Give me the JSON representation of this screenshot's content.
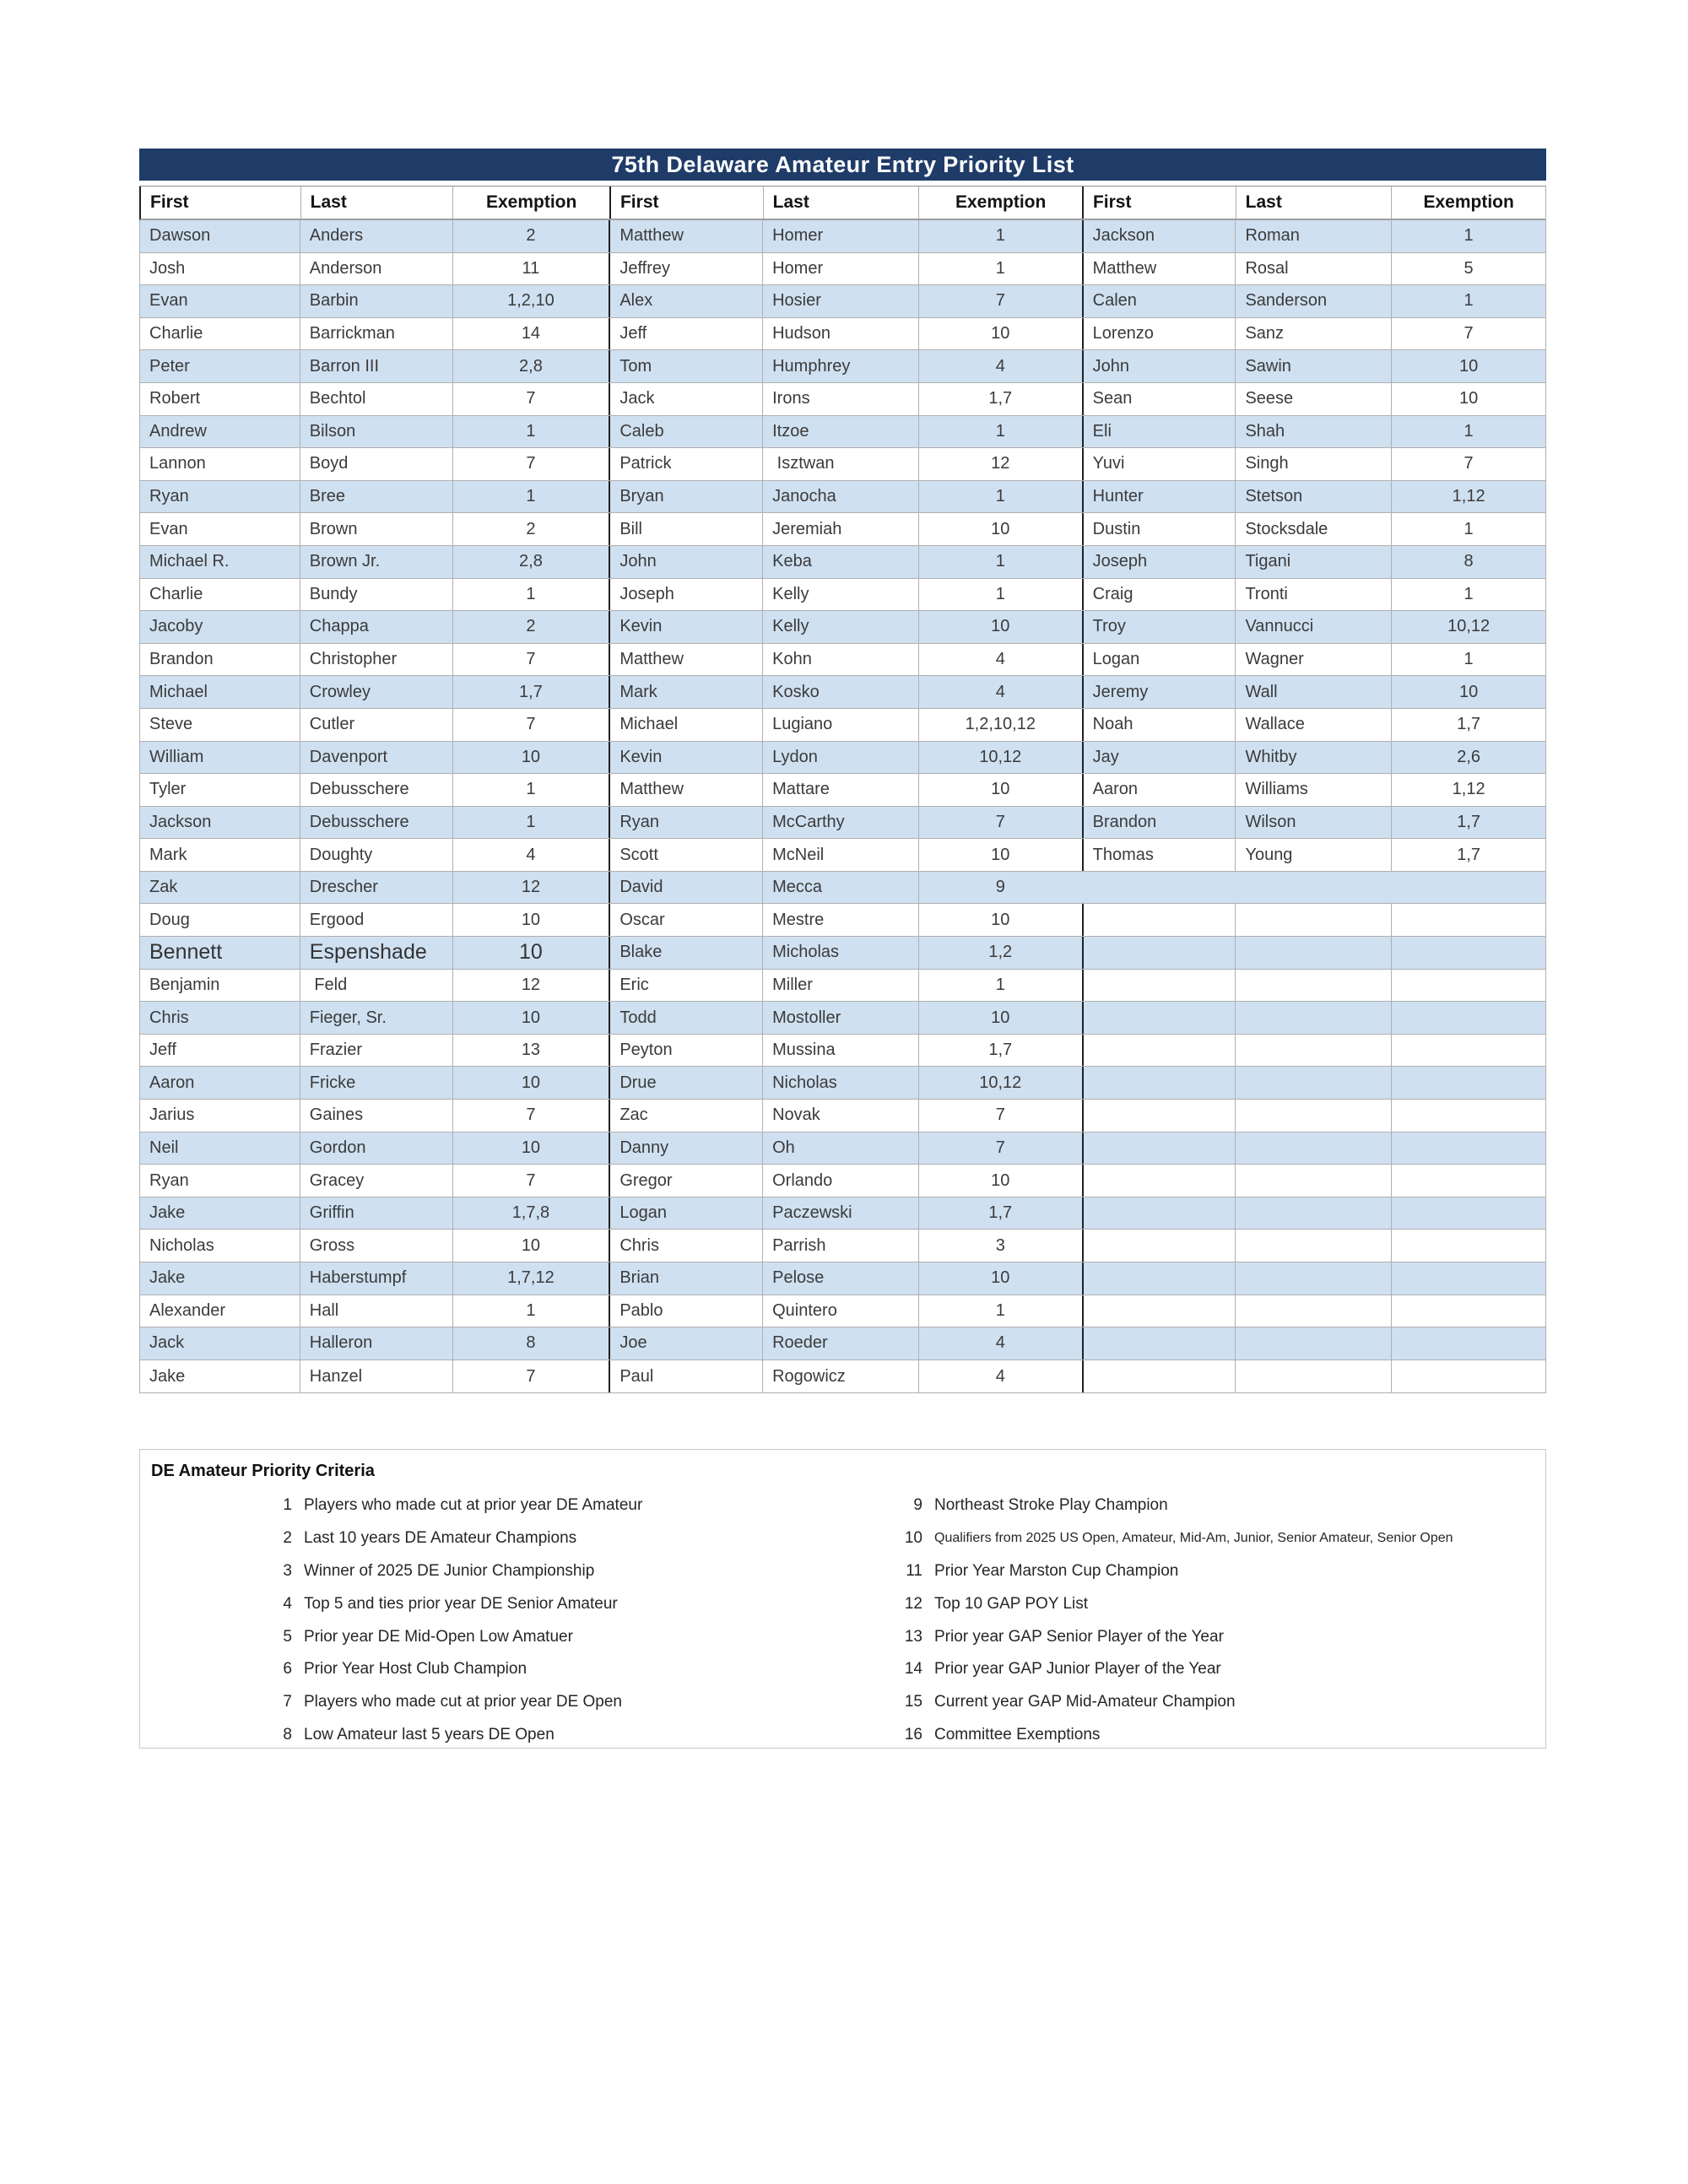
{
  "page": {
    "title": "75th Delaware Amateur Entry Priority List"
  },
  "colors": {
    "title_bar_bg": "#1f3c69",
    "title_text": "#ffffff",
    "row_stripe_blue": "#cfe0f1",
    "grid_border": "#b0b0b0",
    "group_separator": "#222222"
  },
  "table": {
    "header": [
      "First",
      "Last",
      "Exemption",
      "First",
      "Last",
      "Exemption",
      "First",
      "Last",
      "Exemption"
    ],
    "rows": [
      {
        "cells": [
          "Dawson",
          "Anders",
          "2",
          "Matthew",
          "Homer",
          "1",
          "Jackson",
          "Roman",
          "1"
        ]
      },
      {
        "cells": [
          "Josh",
          "Anderson",
          "11",
          "Jeffrey",
          "Homer",
          "1",
          "Matthew",
          "Rosal",
          "5"
        ]
      },
      {
        "cells": [
          "Evan",
          "Barbin",
          "1,2,10",
          "Alex",
          "Hosier",
          "7",
          "Calen",
          "Sanderson",
          "1"
        ]
      },
      {
        "cells": [
          "Charlie",
          "Barrickman",
          "14",
          "Jeff",
          "Hudson",
          "10",
          "Lorenzo",
          "Sanz",
          "7"
        ]
      },
      {
        "cells": [
          "Peter",
          "Barron III",
          "2,8",
          "Tom",
          "Humphrey",
          "4",
          "John",
          "Sawin",
          "10"
        ]
      },
      {
        "cells": [
          "Robert",
          "Bechtol",
          "7",
          "Jack",
          "Irons",
          "1,7",
          "Sean",
          "Seese",
          "10"
        ]
      },
      {
        "cells": [
          "Andrew",
          "Bilson",
          "1",
          "Caleb",
          "Itzoe",
          "1",
          "Eli",
          "Shah",
          "1"
        ]
      },
      {
        "cells": [
          "Lannon",
          "Boyd",
          "7",
          "Patrick",
          " Isztwan",
          "12",
          "Yuvi",
          "Singh",
          "7"
        ]
      },
      {
        "cells": [
          "Ryan",
          "Bree",
          "1",
          "Bryan",
          "Janocha",
          "1",
          "Hunter",
          "Stetson",
          "1,12"
        ]
      },
      {
        "cells": [
          "Evan",
          "Brown",
          "2",
          "Bill",
          "Jeremiah",
          "10",
          "Dustin",
          "Stocksdale",
          "1"
        ]
      },
      {
        "cells": [
          "Michael R.",
          "Brown Jr.",
          "2,8",
          "John",
          "Keba",
          "1",
          "Joseph",
          "Tigani",
          "8"
        ]
      },
      {
        "cells": [
          "Charlie",
          "Bundy",
          "1",
          "Joseph",
          "Kelly",
          "1",
          "Craig",
          "Tronti",
          "1"
        ]
      },
      {
        "cells": [
          "Jacoby",
          "Chappa",
          "2",
          "Kevin",
          "Kelly",
          "10",
          "Troy",
          "Vannucci",
          "10,12"
        ]
      },
      {
        "cells": [
          "Brandon",
          "Christopher",
          "7",
          "Matthew",
          "Kohn",
          "4",
          "Logan",
          "Wagner",
          "1"
        ]
      },
      {
        "cells": [
          "Michael",
          "Crowley",
          "1,7",
          "Mark",
          "Kosko",
          "4",
          "Jeremy",
          "Wall",
          "10"
        ]
      },
      {
        "cells": [
          "Steve",
          "Cutler",
          "7",
          "Michael",
          "Lugiano",
          "1,2,10,12",
          "Noah",
          "Wallace",
          "1,7"
        ]
      },
      {
        "cells": [
          "William",
          "Davenport",
          "10",
          "Kevin",
          "Lydon",
          "10,12",
          "Jay",
          "Whitby",
          "2,6"
        ]
      },
      {
        "cells": [
          "Tyler",
          "Debusschere",
          "1",
          "Matthew",
          "Mattare",
          "10",
          "Aaron",
          "Williams",
          "1,12"
        ]
      },
      {
        "cells": [
          "Jackson",
          "Debusschere",
          "1",
          "Ryan",
          "McCarthy",
          "7",
          "Brandon",
          "Wilson",
          "1,7"
        ]
      },
      {
        "cells": [
          "Mark",
          "Doughty",
          "4",
          "Scott",
          "McNeil",
          "10",
          "Thomas",
          "Young",
          "1,7"
        ]
      },
      {
        "cells": [
          "Zak",
          "Drescher",
          "12",
          "David",
          "Mecca",
          "9",
          "",
          "",
          ""
        ],
        "variant": "merged"
      },
      {
        "cells": [
          "Doug",
          "Ergood",
          "10",
          "Oscar",
          "Mestre",
          "10",
          "",
          "",
          ""
        ]
      },
      {
        "cells": [
          "Bennett",
          "Espenshade",
          "10",
          "Blake",
          "Micholas",
          "1,2",
          "",
          "",
          ""
        ],
        "variant": "large"
      },
      {
        "cells": [
          "Benjamin",
          " Feld",
          "12",
          "Eric",
          "Miller",
          "1",
          "",
          "",
          ""
        ]
      },
      {
        "cells": [
          "Chris",
          "Fieger, Sr.",
          "10",
          "Todd",
          "Mostoller",
          "10",
          "",
          "",
          ""
        ]
      },
      {
        "cells": [
          "Jeff",
          "Frazier",
          "13",
          "Peyton",
          "Mussina",
          "1,7",
          "",
          "",
          ""
        ]
      },
      {
        "cells": [
          "Aaron",
          "Fricke",
          "10",
          "Drue",
          "Nicholas",
          "10,12",
          "",
          "",
          ""
        ]
      },
      {
        "cells": [
          "Jarius",
          "Gaines",
          "7",
          "Zac",
          "Novak",
          "7",
          "",
          "",
          ""
        ]
      },
      {
        "cells": [
          "Neil",
          "Gordon",
          "10",
          "Danny",
          "Oh",
          "7",
          "",
          "",
          ""
        ]
      },
      {
        "cells": [
          "Ryan",
          "Gracey",
          "7",
          "Gregor",
          "Orlando",
          "10",
          "",
          "",
          ""
        ]
      },
      {
        "cells": [
          "Jake",
          "Griffin",
          "1,7,8",
          "Logan",
          "Paczewski",
          "1,7",
          "",
          "",
          ""
        ]
      },
      {
        "cells": [
          "Nicholas",
          "Gross",
          "10",
          "Chris",
          "Parrish",
          "3",
          "",
          "",
          ""
        ]
      },
      {
        "cells": [
          "Jake",
          "Haberstumpf",
          "1,7,12",
          "Brian",
          "Pelose",
          "10",
          "",
          "",
          ""
        ]
      },
      {
        "cells": [
          "Alexander",
          "Hall",
          "1",
          "Pablo",
          "Quintero",
          "1",
          "",
          "",
          ""
        ]
      },
      {
        "cells": [
          "Jack",
          "Halleron",
          "8",
          "Joe",
          "Roeder",
          "4",
          "",
          "",
          ""
        ]
      },
      {
        "cells": [
          "Jake",
          "Hanzel",
          "7",
          "Paul",
          "Rogowicz",
          "4",
          "",
          "",
          ""
        ]
      }
    ]
  },
  "criteria": {
    "heading": "DE Amateur Priority Criteria",
    "items": [
      {
        "n": "1",
        "text": "Players who made cut at prior year DE Amateur"
      },
      {
        "n": "2",
        "text": "Last 10 years DE Amateur Champions"
      },
      {
        "n": "3",
        "text": "Winner of 2025 DE Junior Championship"
      },
      {
        "n": "4",
        "text": "Top 5 and ties prior year DE Senior Amateur"
      },
      {
        "n": "5",
        "text": "Prior year DE Mid-Open Low Amatuer"
      },
      {
        "n": "6",
        "text": "Prior Year Host Club Champion"
      },
      {
        "n": "7",
        "text": "Players who made cut at prior year DE Open"
      },
      {
        "n": "8",
        "text": "Low Amateur last 5 years DE Open"
      },
      {
        "n": "9",
        "text": "Northeast Stroke Play Champion"
      },
      {
        "n": "10",
        "text": "Qualifiers from 2025 US Open, Amateur, Mid-Am, Junior, Senior Amateur, Senior Open",
        "small": true
      },
      {
        "n": "11",
        "text": "Prior Year Marston Cup Champion"
      },
      {
        "n": "12",
        "text": "Top 10 GAP POY List"
      },
      {
        "n": "13",
        "text": "Prior year GAP Senior Player of the Year"
      },
      {
        "n": "14",
        "text": "Prior year GAP Junior Player of the Year"
      },
      {
        "n": "15",
        "text": "Current year GAP Mid-Amateur Champion"
      },
      {
        "n": "16",
        "text": "Committee Exemptions"
      }
    ]
  }
}
